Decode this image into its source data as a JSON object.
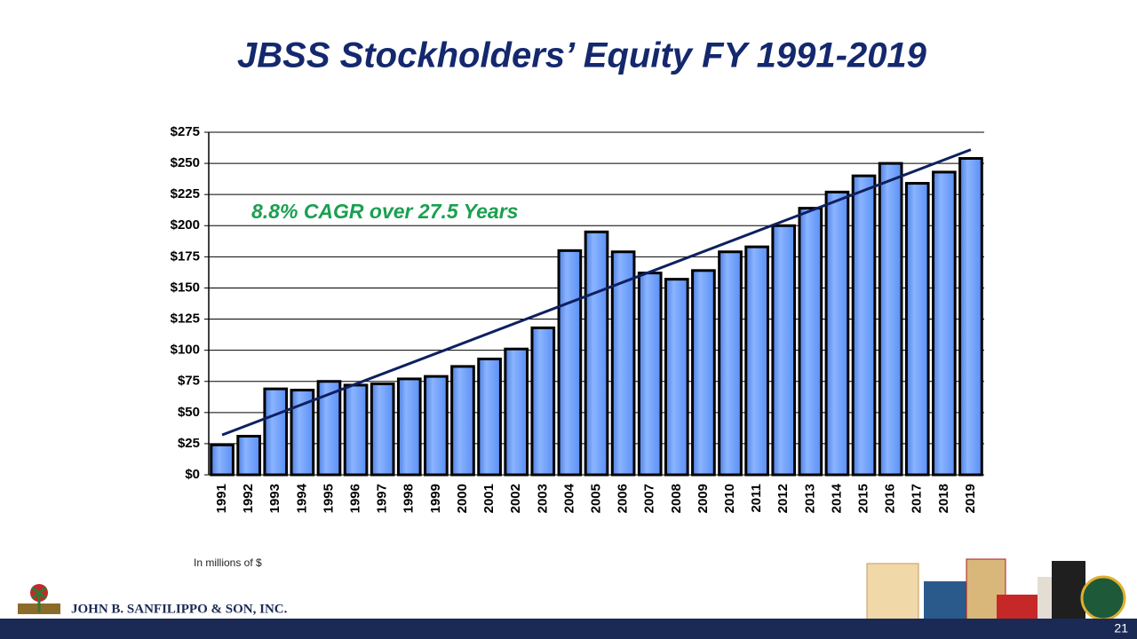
{
  "chart_data": {
    "type": "bar",
    "title": "JBSS Stockholders’ Equity FY 1991-2019",
    "annotation": "8.8% CAGR over 27.5 Years",
    "footnote": "In millions of $",
    "company": "JOHN B. SANFILIPPO & SON, INC.",
    "page_number": "21",
    "categories": [
      "1991",
      "1992",
      "1993",
      "1994",
      "1995",
      "1996",
      "1997",
      "1998",
      "1999",
      "2000",
      "2001",
      "2002",
      "2003",
      "2004",
      "2005",
      "2006",
      "2007",
      "2008",
      "2009",
      "2010",
      "2011",
      "2012",
      "2013",
      "2014",
      "2015",
      "2016",
      "2017",
      "2018",
      "2019"
    ],
    "values": [
      24,
      31,
      69,
      68,
      75,
      72,
      73,
      77,
      79,
      87,
      93,
      101,
      118,
      180,
      195,
      179,
      162,
      157,
      164,
      179,
      183,
      200,
      214,
      227,
      240,
      250,
      234,
      243,
      254
    ],
    "color": "#6f9eff",
    "trendline": [
      32,
      261
    ],
    "trendline_color": "#0f2060",
    "ylim": [
      0,
      275
    ],
    "yticks": [
      {
        "value": 0,
        "label": "$0"
      },
      {
        "value": 25,
        "label": "$25"
      },
      {
        "value": 50,
        "label": "$50"
      },
      {
        "value": 75,
        "label": "$75"
      },
      {
        "value": 100,
        "label": "$100"
      },
      {
        "value": 125,
        "label": "$125"
      },
      {
        "value": 150,
        "label": "$150"
      },
      {
        "value": 175,
        "label": "$175"
      },
      {
        "value": 200,
        "label": "$200"
      },
      {
        "value": 225,
        "label": "$225"
      },
      {
        "value": 250,
        "label": "$250"
      },
      {
        "value": 275,
        "label": "$275"
      }
    ],
    "grid": true
  }
}
